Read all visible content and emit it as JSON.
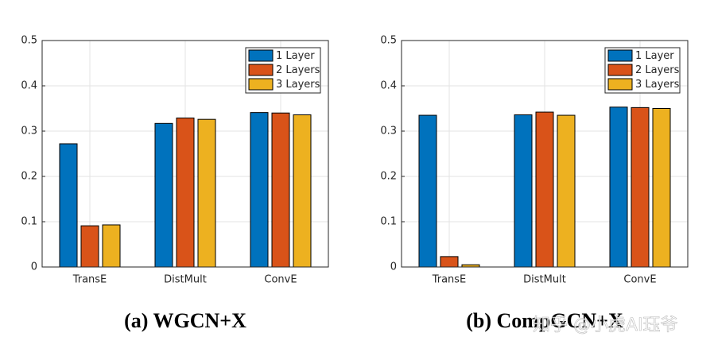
{
  "chart_data": [
    {
      "type": "bar",
      "title": "(a) WGCN+X",
      "categories": [
        "TransE",
        "DistMult",
        "ConvE"
      ],
      "series": [
        {
          "name": "1 Layer",
          "color": "#0072BD",
          "values": [
            0.272,
            0.317,
            0.341
          ]
        },
        {
          "name": "2 Layers",
          "color": "#D95319",
          "values": [
            0.091,
            0.329,
            0.34
          ]
        },
        {
          "name": "3 Layers",
          "color": "#EDB120",
          "values": [
            0.093,
            0.326,
            0.336
          ]
        }
      ],
      "ylim": [
        0,
        0.5
      ],
      "yticks": [
        0,
        0.1,
        0.2,
        0.3,
        0.4,
        0.5
      ],
      "grid": true,
      "legend": "top-right"
    },
    {
      "type": "bar",
      "title": "(b) CompGCN+X",
      "categories": [
        "TransE",
        "DistMult",
        "ConvE"
      ],
      "series": [
        {
          "name": "1 Layer",
          "color": "#0072BD",
          "values": [
            0.335,
            0.336,
            0.353
          ]
        },
        {
          "name": "2 Layers",
          "color": "#D95319",
          "values": [
            0.023,
            0.342,
            0.352
          ]
        },
        {
          "name": "3 Layers",
          "color": "#EDB120",
          "values": [
            0.005,
            0.335,
            0.35
          ]
        }
      ],
      "ylim": [
        0,
        0.5
      ],
      "yticks": [
        0,
        0.1,
        0.2,
        0.3,
        0.4,
        0.5
      ],
      "grid": true,
      "legend": "top-right"
    }
  ],
  "watermark": "知乎 @小虎AI珏爷"
}
